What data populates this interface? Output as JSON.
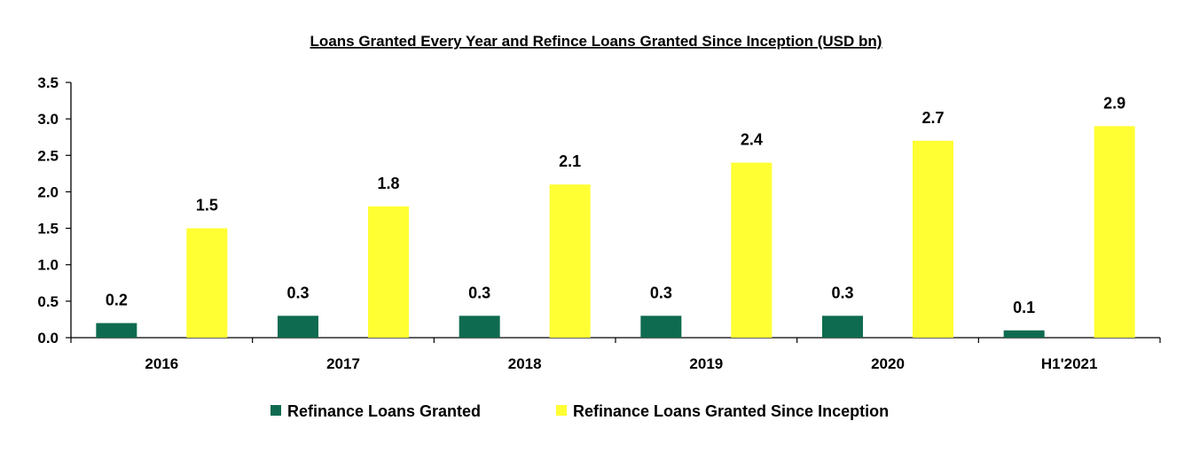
{
  "chart_data": {
    "type": "bar",
    "title": "Loans Granted Every Year and Refince Loans Granted Since Inception (USD bn)",
    "xlabel": "",
    "ylabel": "",
    "categories": [
      "2016",
      "2017",
      "2018",
      "2019",
      "2020",
      "H1'2021"
    ],
    "series": [
      {
        "name": "Refinance Loans Granted",
        "color": "#0f6b50",
        "values": [
          0.2,
          0.3,
          0.3,
          0.3,
          0.3,
          0.1
        ],
        "labels": [
          "0.2",
          "0.3",
          "0.3",
          "0.3",
          "0.3",
          "0.1"
        ]
      },
      {
        "name": "Refinance Loans Granted Since Inception",
        "color": "#ffff33",
        "values": [
          1.5,
          1.8,
          2.1,
          2.4,
          2.7,
          2.9
        ],
        "labels": [
          "1.5",
          "1.8",
          "2.1",
          "2.4",
          "2.7",
          "2.9"
        ]
      }
    ],
    "ylim": [
      0,
      3.5
    ],
    "yticks": [
      "0.0",
      "0.5",
      "1.0",
      "1.5",
      "2.0",
      "2.5",
      "3.0",
      "3.5"
    ],
    "grid": false,
    "legend_position": "bottom"
  }
}
